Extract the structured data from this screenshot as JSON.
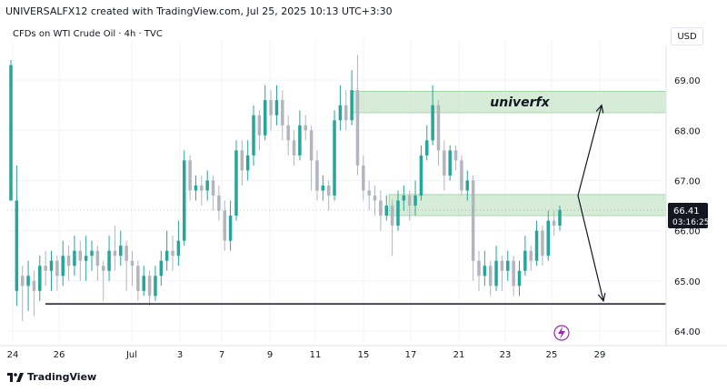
{
  "header": {
    "attribution": "UNIVERSALFX12 created with TradingView.com, Jul 25, 2025 10:13 UTC+3:30",
    "symbol": "CFDs on WTI Crude Oil · 4h · TVC",
    "currency": "USD"
  },
  "footer": {
    "brand": "TradingView"
  },
  "colors": {
    "up": "#26a69a",
    "down": "#b2b5be",
    "zone": "#c8e6c9",
    "zone_border": "#81c784",
    "support": "#131722",
    "price_tag": "#131722",
    "lightning": "#9c27b0"
  },
  "chart_data": {
    "type": "candlestick",
    "ylim": [
      63.8,
      69.6
    ],
    "y_ticks": [
      64.0,
      65.0,
      66.0,
      67.0,
      68.0,
      69.0
    ],
    "y_tick_labels": [
      "64.00",
      "65.00",
      "66.00",
      "67.00",
      "68.00",
      "69.00"
    ],
    "x_ticks": [
      "24",
      "26",
      "Jul",
      "3",
      "7",
      "9",
      "11",
      "15",
      "17",
      "21",
      "23",
      "25",
      "29"
    ],
    "last_price": "66.41",
    "countdown": "03:16:25",
    "zone_label": "univerfx",
    "zones": [
      {
        "from": 68.35,
        "to": 68.78
      },
      {
        "from": 66.3,
        "to": 66.72
      }
    ],
    "support_level": 64.54,
    "arrows": [
      {
        "from": 66.7,
        "to": 68.5,
        "direction": "up"
      },
      {
        "from": 66.7,
        "to": 64.6,
        "direction": "down"
      }
    ],
    "candles": [
      [
        66.6,
        69.3,
        66.6,
        69.4
      ],
      [
        64.8,
        66.6,
        64.5,
        67.3
      ],
      [
        65.1,
        64.9,
        64.2,
        65.3
      ],
      [
        64.9,
        65.1,
        64.4,
        65.4
      ],
      [
        65.0,
        64.8,
        64.3,
        65.2
      ],
      [
        64.8,
        65.3,
        64.6,
        65.5
      ],
      [
        65.3,
        65.2,
        64.9,
        65.6
      ],
      [
        65.2,
        65.4,
        64.8,
        65.6
      ],
      [
        65.4,
        65.1,
        64.8,
        65.5
      ],
      [
        65.1,
        65.5,
        64.9,
        65.8
      ],
      [
        65.5,
        65.3,
        65.0,
        65.7
      ],
      [
        65.3,
        65.6,
        65.1,
        65.9
      ],
      [
        65.6,
        65.4,
        65.0,
        65.8
      ],
      [
        65.4,
        65.5,
        65.0,
        65.9
      ],
      [
        65.5,
        65.6,
        65.2,
        65.8
      ],
      [
        65.6,
        65.3,
        65.0,
        65.7
      ],
      [
        65.3,
        65.2,
        64.6,
        65.4
      ],
      [
        65.2,
        65.6,
        65.0,
        65.9
      ],
      [
        65.6,
        65.5,
        65.2,
        66.1
      ],
      [
        65.5,
        65.7,
        65.3,
        66.0
      ],
      [
        65.7,
        65.4,
        64.8,
        65.8
      ],
      [
        65.4,
        65.3,
        64.9,
        65.6
      ],
      [
        65.3,
        64.8,
        64.6,
        65.4
      ],
      [
        64.8,
        65.1,
        64.7,
        65.3
      ],
      [
        65.1,
        64.7,
        64.5,
        65.2
      ],
      [
        64.7,
        65.1,
        64.6,
        65.3
      ],
      [
        65.1,
        65.4,
        64.9,
        65.6
      ],
      [
        65.4,
        65.6,
        65.2,
        66.0
      ],
      [
        65.6,
        65.5,
        65.2,
        65.9
      ],
      [
        65.5,
        65.8,
        65.3,
        66.2
      ],
      [
        65.8,
        67.4,
        65.7,
        67.6
      ],
      [
        67.4,
        66.8,
        66.6,
        67.5
      ],
      [
        66.8,
        66.9,
        66.6,
        67.1
      ],
      [
        66.9,
        66.8,
        66.5,
        67.1
      ],
      [
        66.8,
        67.0,
        66.6,
        67.2
      ],
      [
        67.0,
        66.7,
        66.4,
        67.1
      ],
      [
        66.7,
        66.4,
        66.2,
        66.9
      ],
      [
        66.4,
        65.8,
        65.6,
        66.6
      ],
      [
        65.8,
        66.3,
        65.6,
        66.6
      ],
      [
        66.3,
        67.6,
        66.2,
        67.8
      ],
      [
        67.6,
        67.2,
        66.9,
        67.8
      ],
      [
        67.2,
        67.5,
        67.0,
        67.8
      ],
      [
        67.5,
        68.3,
        67.3,
        68.5
      ],
      [
        68.3,
        67.9,
        67.6,
        68.4
      ],
      [
        67.9,
        68.6,
        67.8,
        68.9
      ],
      [
        68.6,
        68.3,
        68.0,
        68.8
      ],
      [
        68.3,
        68.6,
        68.1,
        68.9
      ],
      [
        68.6,
        68.1,
        67.8,
        68.8
      ],
      [
        68.1,
        67.8,
        67.5,
        68.3
      ],
      [
        67.8,
        67.5,
        67.3,
        68.0
      ],
      [
        67.5,
        68.1,
        67.4,
        68.4
      ],
      [
        68.1,
        68.0,
        67.8,
        68.3
      ],
      [
        68.0,
        67.4,
        66.8,
        68.1
      ],
      [
        67.4,
        66.8,
        66.6,
        67.6
      ],
      [
        66.8,
        66.9,
        66.6,
        67.1
      ],
      [
        66.9,
        66.7,
        66.4,
        67.0
      ],
      [
        66.7,
        68.2,
        66.6,
        68.4
      ],
      [
        68.2,
        68.5,
        68.0,
        68.9
      ],
      [
        68.5,
        68.2,
        68.0,
        68.8
      ],
      [
        68.2,
        68.8,
        68.1,
        69.2
      ],
      [
        68.8,
        67.3,
        67.1,
        69.5
      ],
      [
        67.3,
        66.8,
        66.6,
        67.5
      ],
      [
        66.8,
        66.7,
        66.4,
        67.0
      ],
      [
        66.7,
        66.6,
        66.3,
        66.9
      ],
      [
        66.6,
        66.3,
        66.0,
        66.8
      ],
      [
        66.3,
        66.5,
        66.2,
        66.7
      ],
      [
        66.5,
        66.1,
        65.5,
        66.6
      ],
      [
        66.1,
        66.6,
        66.0,
        66.8
      ],
      [
        66.6,
        66.7,
        66.4,
        66.9
      ],
      [
        66.7,
        66.5,
        66.2,
        66.8
      ],
      [
        66.5,
        66.7,
        66.3,
        67.0
      ],
      [
        66.7,
        67.5,
        66.6,
        67.7
      ],
      [
        67.5,
        67.8,
        67.4,
        68.1
      ],
      [
        67.8,
        68.5,
        67.7,
        68.9
      ],
      [
        68.5,
        67.6,
        67.3,
        68.6
      ],
      [
        67.6,
        67.1,
        66.8,
        67.8
      ],
      [
        67.1,
        67.6,
        67.0,
        67.7
      ],
      [
        67.6,
        67.4,
        67.2,
        67.7
      ],
      [
        67.4,
        66.8,
        66.7,
        67.5
      ],
      [
        66.8,
        67.0,
        66.6,
        67.2
      ],
      [
        67.0,
        65.4,
        65.0,
        67.1
      ],
      [
        65.4,
        65.1,
        64.8,
        65.6
      ],
      [
        65.1,
        65.3,
        64.9,
        65.6
      ],
      [
        65.3,
        64.9,
        64.7,
        65.4
      ],
      [
        64.9,
        65.4,
        64.8,
        65.7
      ],
      [
        65.4,
        65.2,
        64.8,
        65.5
      ],
      [
        65.2,
        65.4,
        65.0,
        65.6
      ],
      [
        65.4,
        64.9,
        64.7,
        65.5
      ],
      [
        64.9,
        65.2,
        64.7,
        65.4
      ],
      [
        65.2,
        65.6,
        65.1,
        65.9
      ],
      [
        65.6,
        65.4,
        65.2,
        65.7
      ],
      [
        65.4,
        66.0,
        65.3,
        66.2
      ],
      [
        66.0,
        65.5,
        65.3,
        66.1
      ],
      [
        65.5,
        66.2,
        65.4,
        66.4
      ],
      [
        66.2,
        66.1,
        65.9,
        66.4
      ],
      [
        66.1,
        66.41,
        66.0,
        66.5
      ]
    ]
  }
}
